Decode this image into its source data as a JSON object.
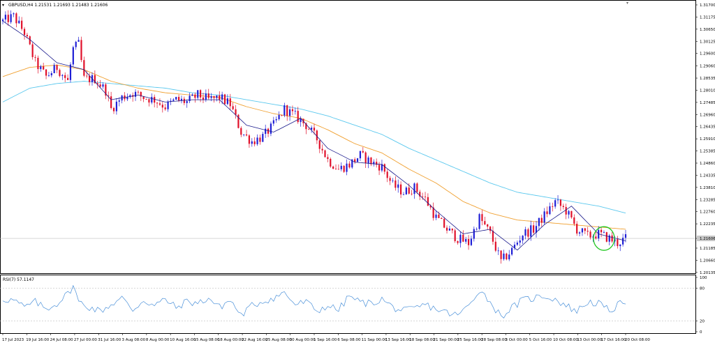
{
  "header": {
    "symbol_line": "GBPUSD,H4  1.21531 1.21693 1.21483 1.21606",
    "rsi_line": "RSI(7) 57.1147"
  },
  "colors": {
    "background": "#ffffff",
    "bull": "#1f1fd6",
    "bear": "#e0102a",
    "ma_fast": "#1a1a8c",
    "ma_mid": "#f0a030",
    "ma_slow": "#5ac8ee",
    "rsi": "#4a90d9",
    "circle": "#22c822",
    "grid": "#bfbfbf"
  },
  "chart_data": [
    {
      "type": "candlestick",
      "symbol": "GBPUSD",
      "timeframe": "H4",
      "last_price": 1.21606,
      "last_price_label": "1.21606",
      "ylim": [
        1.2013,
        1.317
      ],
      "y_ticks": [
        "1.31700",
        "1.31175",
        "1.30650",
        "1.30125",
        "1.29600",
        "1.29060",
        "1.28535",
        "1.28010",
        "1.27485",
        "1.26960",
        "1.26435",
        "1.25910",
        "1.25385",
        "1.24860",
        "1.24335",
        "1.23810",
        "1.23285",
        "1.22760",
        "1.22235",
        "1.21606",
        "1.21185",
        "1.20660",
        "1.20135"
      ],
      "x_ticks": [
        "17 Jul 2023",
        "19 Jul 16:00",
        "24 Jul 08:00",
        "27 Jul 00:00",
        "31 Jul 16:00",
        "3 Aug 08:00",
        "8 Aug 00:00",
        "10 Aug 16:00",
        "15 Aug 08:00",
        "18 Aug 00:00",
        "22 Aug 16:00",
        "25 Aug 08:00",
        "30 Aug 00:00",
        "1 Sep 16:00",
        "6 Sep 08:00",
        "11 Sep 00:00",
        "13 Sep 16:00",
        "18 Sep 08:00",
        "21 Sep 00:00",
        "25 Sep 16:00",
        "28 Sep 08:00",
        "3 Oct 00:00",
        "5 Oct 16:00",
        "10 Oct 08:00",
        "13 Oct 00:00",
        "17 Oct 16:00",
        "20 Oct 08:00"
      ],
      "close_path": [
        [
          0,
          1.31
        ],
        [
          4,
          1.312
        ],
        [
          8,
          1.305
        ],
        [
          12,
          1.292
        ],
        [
          16,
          1.286
        ],
        [
          20,
          1.29
        ],
        [
          24,
          1.284
        ],
        [
          26,
          1.298
        ],
        [
          28,
          1.3
        ],
        [
          30,
          1.285
        ],
        [
          34,
          1.285
        ],
        [
          38,
          1.28
        ],
        [
          40,
          1.272
        ],
        [
          44,
          1.277
        ],
        [
          48,
          1.279
        ],
        [
          52,
          1.277
        ],
        [
          56,
          1.276
        ],
        [
          60,
          1.273
        ],
        [
          64,
          1.276
        ],
        [
          68,
          1.275
        ],
        [
          72,
          1.278
        ],
        [
          76,
          1.276
        ],
        [
          80,
          1.277
        ],
        [
          84,
          1.274
        ],
        [
          88,
          1.262
        ],
        [
          92,
          1.258
        ],
        [
          96,
          1.26
        ],
        [
          100,
          1.265
        ],
        [
          104,
          1.272
        ],
        [
          108,
          1.269
        ],
        [
          112,
          1.265
        ],
        [
          116,
          1.259
        ],
        [
          120,
          1.25
        ],
        [
          124,
          1.246
        ],
        [
          128,
          1.248
        ],
        [
          132,
          1.252
        ],
        [
          136,
          1.249
        ],
        [
          140,
          1.247
        ],
        [
          144,
          1.239
        ],
        [
          148,
          1.236
        ],
        [
          152,
          1.238
        ],
        [
          156,
          1.233
        ],
        [
          160,
          1.225
        ],
        [
          164,
          1.22
        ],
        [
          168,
          1.216
        ],
        [
          172,
          1.214
        ],
        [
          176,
          1.225
        ],
        [
          180,
          1.218
        ],
        [
          184,
          1.206
        ],
        [
          188,
          1.211
        ],
        [
          192,
          1.218
        ],
        [
          196,
          1.22
        ],
        [
          200,
          1.226
        ],
        [
          204,
          1.232
        ],
        [
          208,
          1.228
        ],
        [
          212,
          1.22
        ],
        [
          216,
          1.217
        ],
        [
          220,
          1.218
        ],
        [
          224,
          1.216
        ],
        [
          227,
          1.214
        ],
        [
          230,
          1.216
        ]
      ],
      "ma_fast": [
        [
          0,
          1.31
        ],
        [
          10,
          1.302
        ],
        [
          20,
          1.292
        ],
        [
          30,
          1.289
        ],
        [
          40,
          1.276
        ],
        [
          50,
          1.278
        ],
        [
          60,
          1.275
        ],
        [
          70,
          1.276
        ],
        [
          80,
          1.276
        ],
        [
          90,
          1.265
        ],
        [
          100,
          1.262
        ],
        [
          110,
          1.268
        ],
        [
          120,
          1.255
        ],
        [
          130,
          1.249
        ],
        [
          140,
          1.248
        ],
        [
          150,
          1.239
        ],
        [
          160,
          1.228
        ],
        [
          170,
          1.218
        ],
        [
          180,
          1.22
        ],
        [
          190,
          1.211
        ],
        [
          200,
          1.222
        ],
        [
          210,
          1.23
        ],
        [
          220,
          1.218
        ],
        [
          230,
          1.215
        ]
      ],
      "ma_mid": [
        [
          0,
          1.286
        ],
        [
          10,
          1.29
        ],
        [
          20,
          1.291
        ],
        [
          30,
          1.289
        ],
        [
          40,
          1.284
        ],
        [
          50,
          1.281
        ],
        [
          60,
          1.279
        ],
        [
          70,
          1.278
        ],
        [
          80,
          1.277
        ],
        [
          90,
          1.273
        ],
        [
          100,
          1.27
        ],
        [
          110,
          1.268
        ],
        [
          120,
          1.263
        ],
        [
          130,
          1.257
        ],
        [
          140,
          1.253
        ],
        [
          150,
          1.246
        ],
        [
          160,
          1.24
        ],
        [
          170,
          1.232
        ],
        [
          180,
          1.227
        ],
        [
          190,
          1.224
        ],
        [
          200,
          1.223
        ],
        [
          210,
          1.222
        ],
        [
          220,
          1.221
        ],
        [
          230,
          1.22
        ]
      ],
      "ma_slow": [
        [
          0,
          1.275
        ],
        [
          10,
          1.281
        ],
        [
          20,
          1.283
        ],
        [
          30,
          1.284
        ],
        [
          40,
          1.283
        ],
        [
          50,
          1.282
        ],
        [
          60,
          1.281
        ],
        [
          70,
          1.279
        ],
        [
          80,
          1.278
        ],
        [
          90,
          1.276
        ],
        [
          100,
          1.274
        ],
        [
          110,
          1.272
        ],
        [
          120,
          1.269
        ],
        [
          130,
          1.265
        ],
        [
          140,
          1.261
        ],
        [
          150,
          1.255
        ],
        [
          160,
          1.25
        ],
        [
          170,
          1.245
        ],
        [
          180,
          1.24
        ],
        [
          190,
          1.236
        ],
        [
          200,
          1.234
        ],
        [
          210,
          1.232
        ],
        [
          220,
          1.23
        ],
        [
          230,
          1.227
        ]
      ],
      "annotation": "circle around last candles"
    },
    {
      "type": "line",
      "indicator": "RSI(7)",
      "value": 57.1147,
      "ylim": [
        0,
        100
      ],
      "levels": [
        80,
        20
      ],
      "y_ticks": [
        "100",
        "80",
        "20",
        "0"
      ],
      "series": [
        [
          0,
          60
        ],
        [
          4,
          58
        ],
        [
          8,
          45
        ],
        [
          12,
          55
        ],
        [
          16,
          42
        ],
        [
          20,
          52
        ],
        [
          24,
          70
        ],
        [
          26,
          85
        ],
        [
          28,
          55
        ],
        [
          32,
          45
        ],
        [
          36,
          38
        ],
        [
          40,
          50
        ],
        [
          44,
          62
        ],
        [
          48,
          40
        ],
        [
          52,
          58
        ],
        [
          56,
          48
        ],
        [
          60,
          60
        ],
        [
          64,
          44
        ],
        [
          68,
          56
        ],
        [
          72,
          52
        ],
        [
          76,
          62
        ],
        [
          80,
          45
        ],
        [
          84,
          58
        ],
        [
          88,
          30
        ],
        [
          92,
          48
        ],
        [
          96,
          56
        ],
        [
          100,
          62
        ],
        [
          104,
          72
        ],
        [
          108,
          50
        ],
        [
          112,
          55
        ],
        [
          116,
          38
        ],
        [
          120,
          48
        ],
        [
          124,
          40
        ],
        [
          128,
          66
        ],
        [
          132,
          54
        ],
        [
          136,
          52
        ],
        [
          140,
          60
        ],
        [
          144,
          45
        ],
        [
          148,
          38
        ],
        [
          152,
          42
        ],
        [
          156,
          50
        ],
        [
          160,
          42
        ],
        [
          164,
          35
        ],
        [
          168,
          30
        ],
        [
          172,
          48
        ],
        [
          176,
          78
        ],
        [
          180,
          55
        ],
        [
          184,
          28
        ],
        [
          188,
          44
        ],
        [
          192,
          58
        ],
        [
          196,
          62
        ],
        [
          200,
          66
        ],
        [
          204,
          60
        ],
        [
          208,
          48
        ],
        [
          212,
          38
        ],
        [
          216,
          55
        ],
        [
          220,
          52
        ],
        [
          224,
          38
        ],
        [
          227,
          48
        ],
        [
          230,
          57
        ]
      ]
    }
  ]
}
